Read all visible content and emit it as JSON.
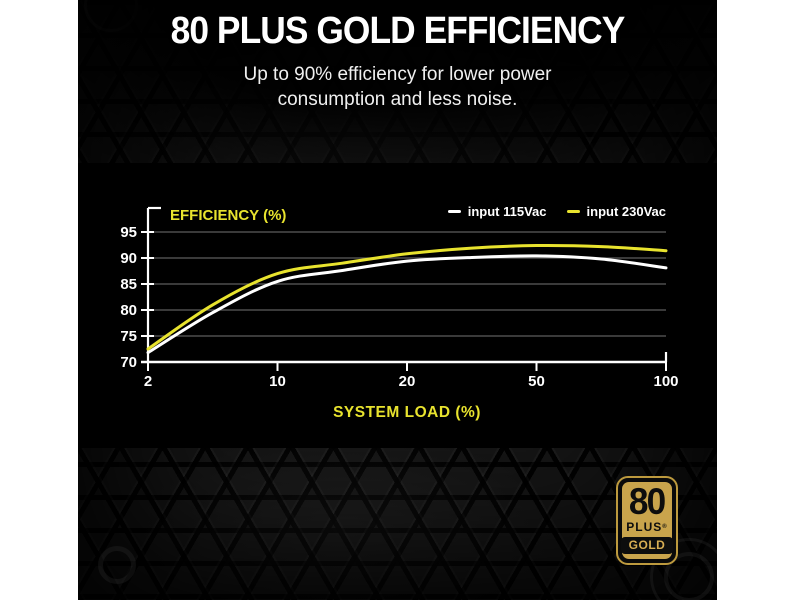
{
  "header": {
    "title": "80 PLUS GOLD EFFICIENCY",
    "subtitle_line1": "Up to 90% efficiency for lower power",
    "subtitle_line2": "consumption and less noise."
  },
  "colors": {
    "accent_yellow": "#e8e32e",
    "line_115": "#ffffff",
    "line_230": "#e8e32e",
    "gridline": "#5e5e5e",
    "axis": "#ffffff",
    "chart_background": "#000000",
    "badge_gold": "#c9a44c",
    "badge_text_gold": "#d8ae54"
  },
  "chart_data": {
    "type": "line",
    "ylabel": "EFFICIENCY (%)",
    "xlabel": "SYSTEM LOAD (%)",
    "x_scale": "pseudo-log, ticks evenly spaced",
    "x_ticks": [
      2,
      10,
      20,
      50,
      100
    ],
    "y_ticks": [
      70,
      75,
      80,
      85,
      90,
      95
    ],
    "ylim": [
      70,
      99
    ],
    "grid": "horizontal only",
    "legend_position": "top-right",
    "series": [
      {
        "name": "input 115Vac",
        "color": "#ffffff",
        "points": [
          {
            "load": 2,
            "eff": 71.8
          },
          {
            "load": 6,
            "eff": 79.5
          },
          {
            "load": 10,
            "eff": 85.5
          },
          {
            "load": 15,
            "eff": 87.6
          },
          {
            "load": 20,
            "eff": 89.4
          },
          {
            "load": 35,
            "eff": 90.1
          },
          {
            "load": 50,
            "eff": 90.4
          },
          {
            "load": 75,
            "eff": 89.8
          },
          {
            "load": 100,
            "eff": 88.1
          }
        ]
      },
      {
        "name": "input 230Vac",
        "color": "#e8e32e",
        "points": [
          {
            "load": 2,
            "eff": 72.5
          },
          {
            "load": 6,
            "eff": 81.0
          },
          {
            "load": 10,
            "eff": 87.0
          },
          {
            "load": 15,
            "eff": 89.0
          },
          {
            "load": 20,
            "eff": 90.8
          },
          {
            "load": 35,
            "eff": 91.9
          },
          {
            "load": 50,
            "eff": 92.4
          },
          {
            "load": 75,
            "eff": 92.2
          },
          {
            "load": 100,
            "eff": 91.4
          }
        ]
      }
    ]
  },
  "badge": {
    "number": "80",
    "plus": "PLUS",
    "reg": "®",
    "tier": "GOLD"
  }
}
